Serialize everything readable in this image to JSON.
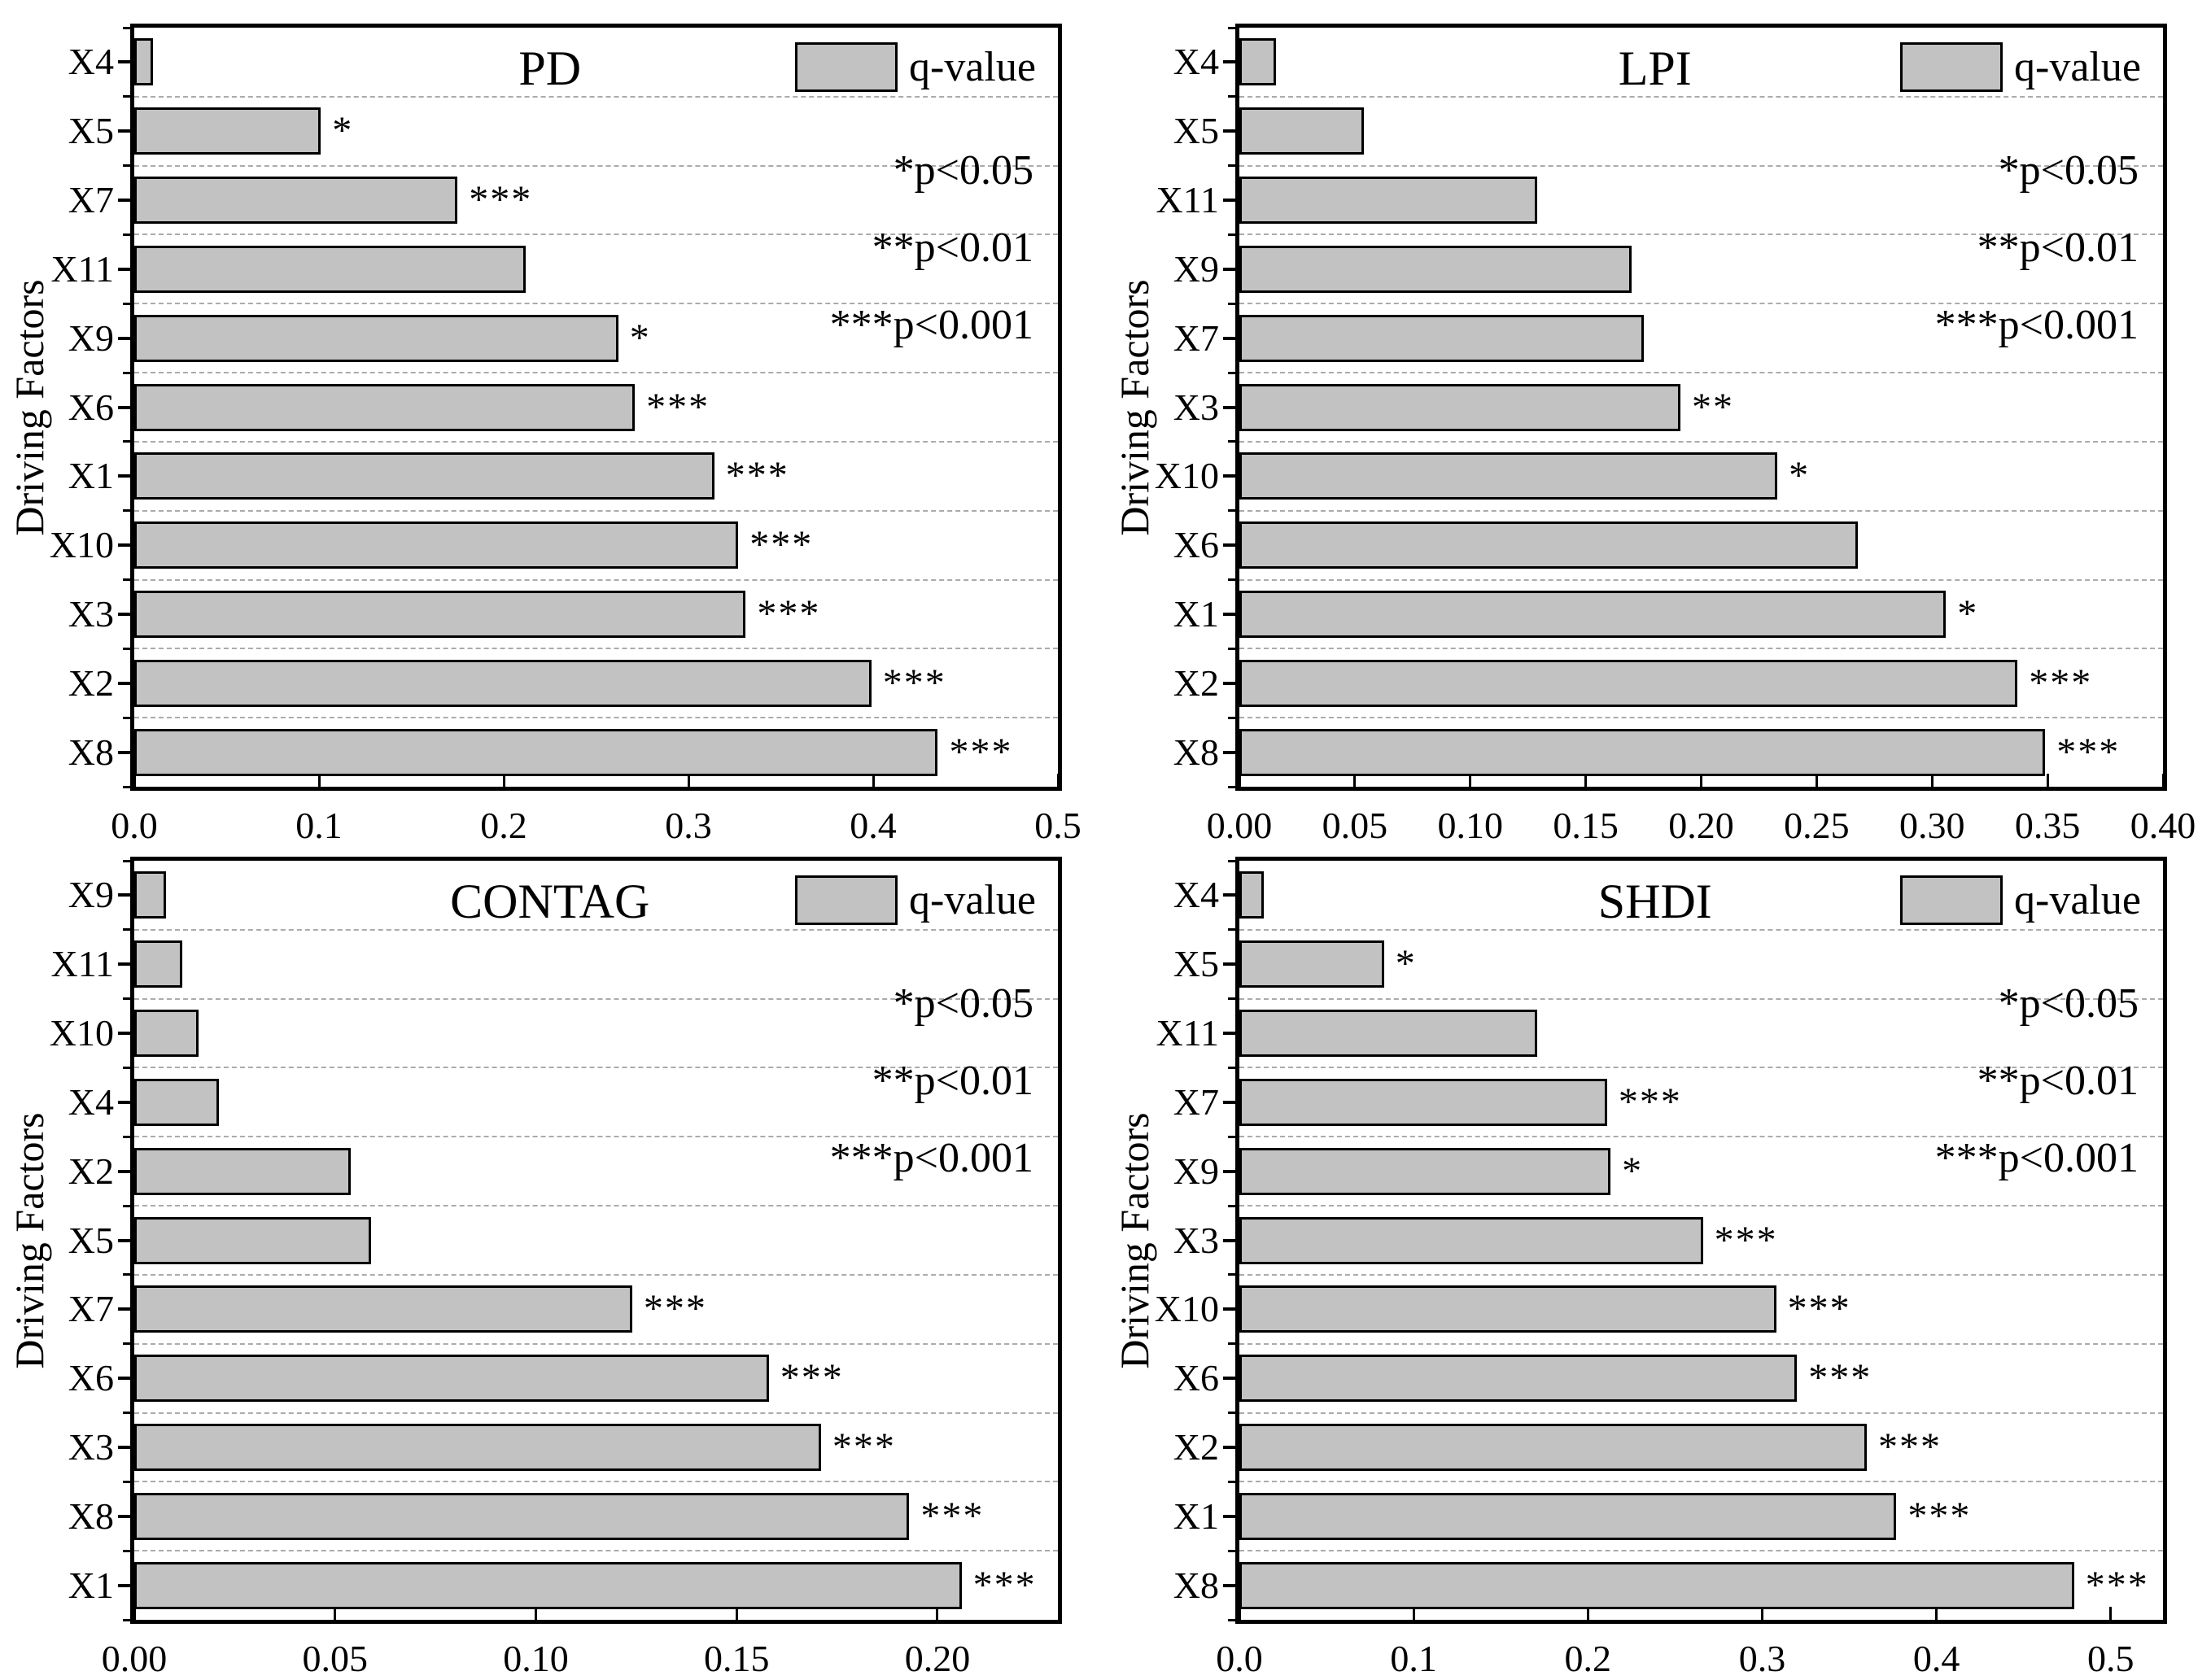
{
  "figure": {
    "background": "#ffffff",
    "bar_fill": "#c2c2c2",
    "bar_edge": "#000000",
    "gridline_color": "#ababab",
    "y_axis_label": "Driving Factors",
    "legend": {
      "swatch_label": "q-value",
      "significance_lines": [
        "*p<0.05",
        "**p<0.01",
        "***p<0.001"
      ]
    }
  },
  "chart_data": [
    {
      "type": "bar",
      "orientation": "horizontal",
      "title": "PD",
      "ylabel": "Driving Factors",
      "legend_label": "q-value",
      "xlim": [
        0,
        0.5
      ],
      "xtick_values": [
        0.0,
        0.1,
        0.2,
        0.3,
        0.4,
        0.5
      ],
      "xtick_labels": [
        "0.0",
        "0.1",
        "0.2",
        "0.3",
        "0.4",
        "0.5"
      ],
      "categories": [
        "X4",
        "X5",
        "X7",
        "X11",
        "X9",
        "X6",
        "X1",
        "X10",
        "X3",
        "X2",
        "X8"
      ],
      "values": [
        0.01,
        0.101,
        0.175,
        0.212,
        0.262,
        0.271,
        0.314,
        0.327,
        0.331,
        0.399,
        0.435
      ],
      "significance": [
        "",
        "*",
        "***",
        "",
        "*",
        "***",
        "***",
        "***",
        "***",
        "***",
        "***"
      ]
    },
    {
      "type": "bar",
      "orientation": "horizontal",
      "title": "LPI",
      "ylabel": "Driving Factors",
      "legend_label": "q-value",
      "xlim": [
        0,
        0.4
      ],
      "xtick_values": [
        0.0,
        0.05,
        0.1,
        0.15,
        0.2,
        0.25,
        0.3,
        0.35,
        0.4
      ],
      "xtick_labels": [
        "0.00",
        "0.05",
        "0.10",
        "0.15",
        "0.20",
        "0.25",
        "0.30",
        "0.35",
        "0.40"
      ],
      "categories": [
        "X4",
        "X5",
        "X11",
        "X9",
        "X7",
        "X3",
        "X10",
        "X6",
        "X1",
        "X2",
        "X8"
      ],
      "values": [
        0.016,
        0.054,
        0.129,
        0.17,
        0.175,
        0.191,
        0.233,
        0.268,
        0.306,
        0.337,
        0.349
      ],
      "significance": [
        "",
        "",
        "",
        "",
        "",
        "**",
        "*",
        "",
        "*",
        "***",
        "***"
      ]
    },
    {
      "type": "bar",
      "orientation": "horizontal",
      "title": "CONTAG",
      "ylabel": "Driving Factors",
      "legend_label": "q-value",
      "xlim": [
        0,
        0.23
      ],
      "xtick_values": [
        0.0,
        0.05,
        0.1,
        0.15,
        0.2
      ],
      "xtick_labels": [
        "0.00",
        "0.05",
        "0.10",
        "0.15",
        "0.20"
      ],
      "categories": [
        "X9",
        "X11",
        "X10",
        "X4",
        "X2",
        "X5",
        "X7",
        "X6",
        "X3",
        "X8",
        "X1"
      ],
      "values": [
        0.008,
        0.012,
        0.016,
        0.021,
        0.054,
        0.059,
        0.124,
        0.158,
        0.171,
        0.193,
        0.206
      ],
      "significance": [
        "",
        "",
        "",
        "",
        "",
        "",
        "***",
        "***",
        "***",
        "***",
        "***"
      ]
    },
    {
      "type": "bar",
      "orientation": "horizontal",
      "title": "SHDI",
      "ylabel": "Driving Factors",
      "legend_label": "q-value",
      "xlim": [
        0,
        0.53
      ],
      "xtick_values": [
        0.0,
        0.1,
        0.2,
        0.3,
        0.4,
        0.5
      ],
      "xtick_labels": [
        "0.0",
        "0.1",
        "0.2",
        "0.3",
        "0.4",
        "0.5"
      ],
      "categories": [
        "X4",
        "X5",
        "X11",
        "X7",
        "X9",
        "X3",
        "X10",
        "X6",
        "X2",
        "X1",
        "X8"
      ],
      "values": [
        0.014,
        0.083,
        0.171,
        0.211,
        0.213,
        0.266,
        0.308,
        0.32,
        0.36,
        0.377,
        0.479
      ],
      "significance": [
        "",
        "*",
        "",
        "***",
        "*",
        "***",
        "***",
        "***",
        "***",
        "***",
        "***"
      ]
    }
  ]
}
